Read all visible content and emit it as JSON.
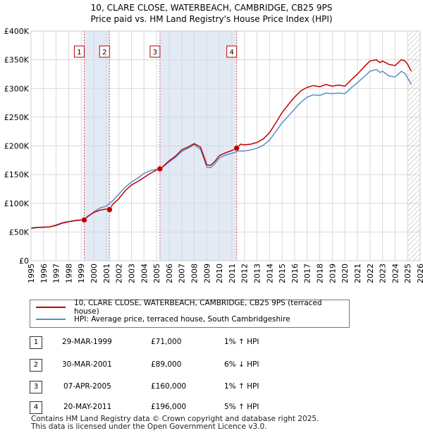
{
  "chart_data": {
    "type": "line",
    "title": "10, CLARE CLOSE, WATERBEACH, CAMBRIDGE, CB25 9PS",
    "subtitle": "Price paid vs. HM Land Registry's House Price Index (HPI)",
    "xlabel": "",
    "ylabel": "",
    "xlim": [
      1995,
      2026
    ],
    "ylim": [
      0,
      400000
    ],
    "x_ticks": [
      "1995",
      "1996",
      "1997",
      "1998",
      "1999",
      "2000",
      "2001",
      "2002",
      "2003",
      "2004",
      "2005",
      "2006",
      "2007",
      "2008",
      "2009",
      "2010",
      "2011",
      "2012",
      "2013",
      "2014",
      "2015",
      "2016",
      "2017",
      "2018",
      "2019",
      "2020",
      "2021",
      "2022",
      "2023",
      "2024",
      "2025",
      "2026"
    ],
    "y_ticks": [
      {
        "value": 0,
        "label": "£0"
      },
      {
        "value": 50000,
        "label": "£50K"
      },
      {
        "value": 100000,
        "label": "£100K"
      },
      {
        "value": 150000,
        "label": "£150K"
      },
      {
        "value": 200000,
        "label": "£200K"
      },
      {
        "value": 250000,
        "label": "£250K"
      },
      {
        "value": 300000,
        "label": "£300K"
      },
      {
        "value": 350000,
        "label": "£350K"
      },
      {
        "value": 400000,
        "label": "£400K"
      }
    ],
    "grid": true,
    "shaded_periods": [
      [
        1999.24,
        2001.25
      ],
      [
        2005.27,
        2011.38
      ]
    ],
    "future_hatch_from": 2025.0,
    "series": [
      {
        "name": "10, CLARE CLOSE, WATERBEACH, CAMBRIDGE, CB25 9PS (terraced house)",
        "color": "#c00000",
        "x": [
          1995.0,
          1995.5,
          1996.0,
          1996.5,
          1997.0,
          1997.5,
          1998.0,
          1998.5,
          1999.0,
          1999.24,
          1999.5,
          2000.0,
          2000.5,
          2001.0,
          2001.25,
          2001.5,
          2002.0,
          2002.5,
          2003.0,
          2003.5,
          2004.0,
          2004.5,
          2005.0,
          2005.27,
          2005.5,
          2006.0,
          2006.5,
          2007.0,
          2007.5,
          2008.0,
          2008.5,
          2008.8,
          2009.0,
          2009.3,
          2009.6,
          2010.0,
          2010.5,
          2011.0,
          2011.38,
          2011.7,
          2012.0,
          2012.5,
          2013.0,
          2013.5,
          2014.0,
          2014.5,
          2015.0,
          2015.5,
          2016.0,
          2016.5,
          2017.0,
          2017.5,
          2018.0,
          2018.5,
          2019.0,
          2019.5,
          2020.0,
          2020.5,
          2021.0,
          2021.5,
          2022.0,
          2022.5,
          2022.8,
          2023.0,
          2023.5,
          2024.0,
          2024.5,
          2024.8,
          2025.0,
          2025.3
        ],
        "values": [
          57000,
          58000,
          58500,
          59000,
          62000,
          66000,
          68000,
          70000,
          71000,
          71000,
          77000,
          84000,
          88000,
          90000,
          89000,
          98000,
          108000,
          122000,
          132000,
          138000,
          145000,
          152000,
          158000,
          160000,
          164000,
          174000,
          182000,
          193000,
          198000,
          204000,
          198000,
          180000,
          167000,
          166000,
          172000,
          183000,
          188000,
          192000,
          196000,
          203000,
          202000,
          203000,
          206000,
          212000,
          223000,
          240000,
          258000,
          272000,
          285000,
          296000,
          302000,
          305000,
          303000,
          307000,
          304000,
          306000,
          304000,
          315000,
          325000,
          337000,
          348000,
          350000,
          345000,
          348000,
          342000,
          340000,
          350000,
          348000,
          342000,
          330000
        ]
      },
      {
        "name": "HPI: Average price, terraced house, South Cambridgeshire",
        "color": "#5b8ec9",
        "x": [
          1995.0,
          1995.5,
          1996.0,
          1996.5,
          1997.0,
          1997.5,
          1998.0,
          1998.5,
          1999.0,
          1999.5,
          2000.0,
          2000.5,
          2001.0,
          2001.5,
          2002.0,
          2002.5,
          2003.0,
          2003.5,
          2004.0,
          2004.5,
          2005.0,
          2005.5,
          2006.0,
          2006.5,
          2007.0,
          2007.5,
          2008.0,
          2008.5,
          2008.8,
          2009.0,
          2009.3,
          2009.6,
          2010.0,
          2010.5,
          2011.0,
          2011.5,
          2012.0,
          2012.5,
          2013.0,
          2013.5,
          2014.0,
          2014.5,
          2015.0,
          2015.5,
          2016.0,
          2016.5,
          2017.0,
          2017.5,
          2018.0,
          2018.5,
          2019.0,
          2019.5,
          2020.0,
          2020.5,
          2021.0,
          2021.5,
          2022.0,
          2022.5,
          2022.8,
          2023.0,
          2023.5,
          2024.0,
          2024.5,
          2024.8,
          2025.0,
          2025.3
        ],
        "values": [
          56000,
          57500,
          58000,
          59000,
          61000,
          65000,
          67500,
          69500,
          70500,
          76000,
          85000,
          92000,
          95000,
          104000,
          116000,
          128000,
          137000,
          144000,
          152000,
          157000,
          159000,
          163000,
          172000,
          180000,
          190000,
          196000,
          202000,
          194000,
          176000,
          163000,
          162000,
          168000,
          179000,
          184000,
          187000,
          191000,
          191000,
          193000,
          196000,
          201000,
          210000,
          225000,
          240000,
          252000,
          264000,
          276000,
          285000,
          289000,
          288000,
          292000,
          291000,
          292000,
          291000,
          301000,
          310000,
          320000,
          330000,
          333000,
          328000,
          330000,
          322000,
          320000,
          330000,
          326000,
          318000,
          307000
        ]
      }
    ],
    "sales": [
      {
        "num": "1",
        "x": 1999.24,
        "value": 71000
      },
      {
        "num": "2",
        "x": 2001.25,
        "value": 89000
      },
      {
        "num": "3",
        "x": 2005.27,
        "value": 160000
      },
      {
        "num": "4",
        "x": 2011.38,
        "value": 196000
      }
    ]
  },
  "legend": {
    "items": [
      {
        "label": "10, CLARE CLOSE, WATERBEACH, CAMBRIDGE, CB25 9PS (terraced house)",
        "color": "#c00000"
      },
      {
        "label": "HPI: Average price, terraced house, South Cambridgeshire",
        "color": "#5b8ec9"
      }
    ]
  },
  "table": {
    "rows": [
      {
        "num": "1",
        "date": "29-MAR-1999",
        "price": "£71,000",
        "hpi": "1% ↑ HPI"
      },
      {
        "num": "2",
        "date": "30-MAR-2001",
        "price": "£89,000",
        "hpi": "6% ↓ HPI"
      },
      {
        "num": "3",
        "date": "07-APR-2005",
        "price": "£160,000",
        "hpi": "1% ↑ HPI"
      },
      {
        "num": "4",
        "date": "20-MAY-2011",
        "price": "£196,000",
        "hpi": "5% ↑ HPI"
      }
    ]
  },
  "footer": {
    "line1": "Contains HM Land Registry data © Crown copyright and database right 2025.",
    "line2": "This data is licensed under the Open Government Licence v3.0."
  }
}
